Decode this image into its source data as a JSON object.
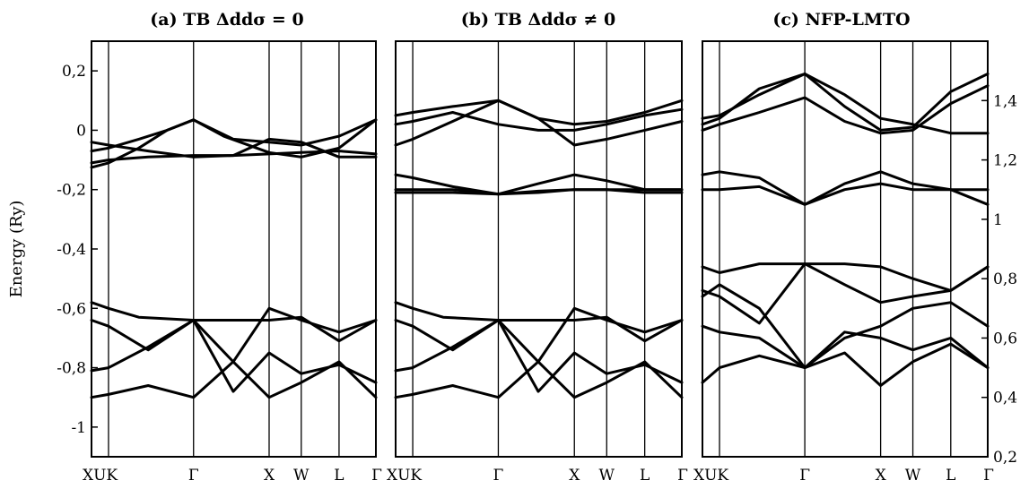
{
  "chart_data": [
    {
      "type": "line",
      "title": "(a) TB Δddσ = 0",
      "ylabel": "Energy (Ry)",
      "ylim": [
        -1.1,
        0.3
      ],
      "yticks": [
        {
          "value": 0.2,
          "label": "0,2"
        },
        {
          "value": 0.0,
          "label": "0"
        },
        {
          "value": -0.2,
          "label": "-0,2"
        },
        {
          "value": -0.4,
          "label": "-0,4"
        },
        {
          "value": -0.6,
          "label": "-0,6"
        },
        {
          "value": -0.8,
          "label": "-0,8"
        },
        {
          "value": -1.0,
          "label": "-1"
        }
      ],
      "xlim": [
        0,
        3.01
      ],
      "kpoints": [
        {
          "label": "X",
          "x": 0.0
        },
        {
          "label": "U",
          "x": 0.18
        },
        {
          "label": "K",
          "x": 0.18
        },
        {
          "label": "Γ",
          "x": 1.08
        },
        {
          "label": "X",
          "x": 1.88
        },
        {
          "label": "W",
          "x": 2.22
        },
        {
          "label": "L",
          "x": 2.62
        },
        {
          "label": "Γ",
          "x": 3.01
        }
      ],
      "xtick_labels": [
        "XUK",
        "Γ",
        "X",
        "W",
        "L",
        "Γ"
      ],
      "series": [
        {
          "x": [
            0,
            0.18,
            0.5,
            0.8,
            1.08
          ],
          "y": [
            -0.07,
            -0.06,
            -0.03,
            0.0,
            0.035
          ]
        },
        {
          "x": [
            1.08,
            1.4,
            1.88,
            2.22,
            2.62,
            3.01
          ],
          "y": [
            0.035,
            -0.02,
            -0.075,
            -0.09,
            -0.06,
            0.035
          ]
        },
        {
          "x": [
            0,
            0.18,
            0.6,
            1.08,
            1.5,
            1.88,
            2.22,
            2.62,
            3.01
          ],
          "y": [
            -0.11,
            -0.1,
            -0.09,
            -0.085,
            -0.085,
            -0.08,
            -0.075,
            -0.07,
            -0.08
          ]
        },
        {
          "x": [
            0,
            0.18,
            0.5,
            0.8,
            1.08
          ],
          "y": [
            -0.125,
            -0.11,
            -0.06,
            0.0,
            0.035
          ]
        },
        {
          "x": [
            1.08,
            1.5,
            1.88,
            2.22,
            2.62,
            3.01
          ],
          "y": [
            0.035,
            -0.03,
            -0.04,
            -0.05,
            -0.02,
            0.035
          ]
        },
        {
          "x": [
            0,
            0.18,
            0.6,
            1.08
          ],
          "y": [
            -0.04,
            -0.05,
            -0.07,
            -0.09
          ]
        },
        {
          "x": [
            1.08,
            1.5,
            1.88,
            2.22,
            2.62,
            3.01
          ],
          "y": [
            -0.09,
            -0.085,
            -0.03,
            -0.04,
            -0.09,
            -0.09
          ]
        },
        {
          "x": [
            0,
            0.18,
            0.5,
            1.08,
            1.5,
            1.88,
            2.22,
            2.62,
            3.01
          ],
          "y": [
            -0.58,
            -0.6,
            -0.63,
            -0.64,
            -0.64,
            -0.64,
            -0.63,
            -0.71,
            -0.64
          ]
        },
        {
          "x": [
            0,
            0.18,
            0.6,
            1.08,
            1.5,
            1.88,
            2.22,
            2.62,
            3.01
          ],
          "y": [
            -0.64,
            -0.66,
            -0.74,
            -0.64,
            -0.78,
            -0.6,
            -0.64,
            -0.68,
            -0.64
          ]
        },
        {
          "x": [
            0,
            0.18,
            0.6,
            1.08,
            1.5,
            1.88,
            2.22,
            2.62,
            3.01
          ],
          "y": [
            -0.81,
            -0.8,
            -0.73,
            -0.64,
            -0.88,
            -0.75,
            -0.82,
            -0.79,
            -0.85
          ]
        },
        {
          "x": [
            0,
            0.18,
            0.6,
            1.08,
            1.5,
            1.88,
            2.22,
            2.62,
            3.01
          ],
          "y": [
            -0.9,
            -0.89,
            -0.86,
            -0.9,
            -0.78,
            -0.9,
            -0.85,
            -0.78,
            -0.9
          ]
        }
      ]
    },
    {
      "type": "line",
      "title": "(b) TB Δddσ ≠ 0",
      "ylim": [
        -1.1,
        0.3
      ],
      "xlim": [
        0,
        3.01
      ],
      "kpoints": [
        {
          "label": "X",
          "x": 0.0
        },
        {
          "label": "U",
          "x": 0.18
        },
        {
          "label": "K",
          "x": 0.18
        },
        {
          "label": "Γ",
          "x": 1.08
        },
        {
          "label": "X",
          "x": 1.88
        },
        {
          "label": "W",
          "x": 2.22
        },
        {
          "label": "L",
          "x": 2.62
        },
        {
          "label": "Γ",
          "x": 3.01
        }
      ],
      "xtick_labels": [
        "XUK",
        "Γ",
        "X",
        "W",
        "L",
        "Γ"
      ],
      "series": [
        {
          "x": [
            0,
            0.18,
            0.6,
            1.08,
            1.5,
            1.88,
            2.22,
            2.62,
            3.01
          ],
          "y": [
            0.05,
            0.06,
            0.08,
            0.1,
            0.04,
            0.02,
            0.03,
            0.06,
            0.1
          ]
        },
        {
          "x": [
            0,
            0.18,
            0.6,
            1.08,
            1.5,
            1.88,
            2.22,
            2.62,
            3.01
          ],
          "y": [
            0.02,
            0.03,
            0.06,
            0.02,
            0.0,
            0.0,
            0.02,
            0.05,
            0.07
          ]
        },
        {
          "x": [
            0,
            0.18,
            0.6,
            1.08,
            1.5,
            1.88,
            2.22,
            2.62,
            3.01
          ],
          "y": [
            -0.05,
            -0.03,
            0.03,
            0.1,
            0.04,
            -0.05,
            -0.03,
            0.0,
            0.03
          ]
        },
        {
          "x": [
            0,
            0.18,
            0.6,
            1.08,
            1.5,
            1.88,
            2.22,
            2.62,
            3.01
          ],
          "y": [
            -0.15,
            -0.16,
            -0.19,
            -0.215,
            -0.18,
            -0.15,
            -0.17,
            -0.2,
            -0.2
          ]
        },
        {
          "x": [
            0,
            0.18,
            0.6,
            1.08,
            1.5,
            1.88,
            2.22,
            2.62,
            3.01
          ],
          "y": [
            -0.2,
            -0.2,
            -0.2,
            -0.215,
            -0.205,
            -0.2,
            -0.2,
            -0.2,
            -0.2
          ]
        },
        {
          "x": [
            0,
            0.18,
            0.6,
            1.08,
            1.5,
            1.88,
            2.22,
            2.62,
            3.01
          ],
          "y": [
            -0.21,
            -0.21,
            -0.21,
            -0.215,
            -0.21,
            -0.2,
            -0.2,
            -0.21,
            -0.21
          ]
        },
        {
          "x": [
            0,
            0.18,
            0.5,
            1.08,
            1.5,
            1.88,
            2.22,
            2.62,
            3.01
          ],
          "y": [
            -0.58,
            -0.6,
            -0.63,
            -0.64,
            -0.64,
            -0.64,
            -0.63,
            -0.71,
            -0.64
          ]
        },
        {
          "x": [
            0,
            0.18,
            0.6,
            1.08,
            1.5,
            1.88,
            2.22,
            2.62,
            3.01
          ],
          "y": [
            -0.64,
            -0.66,
            -0.74,
            -0.64,
            -0.78,
            -0.6,
            -0.64,
            -0.68,
            -0.64
          ]
        },
        {
          "x": [
            0,
            0.18,
            0.6,
            1.08,
            1.5,
            1.88,
            2.22,
            2.62,
            3.01
          ],
          "y": [
            -0.81,
            -0.8,
            -0.73,
            -0.64,
            -0.88,
            -0.75,
            -0.82,
            -0.79,
            -0.85
          ]
        },
        {
          "x": [
            0,
            0.18,
            0.6,
            1.08,
            1.5,
            1.88,
            2.22,
            2.62,
            3.01
          ],
          "y": [
            -0.9,
            -0.89,
            -0.86,
            -0.9,
            -0.78,
            -0.9,
            -0.85,
            -0.78,
            -0.9
          ]
        }
      ]
    },
    {
      "type": "line",
      "title": "(c) NFP-LMTO",
      "ylim": [
        0.2,
        1.6
      ],
      "yticks": [
        {
          "value": 1.4,
          "label": "1,4"
        },
        {
          "value": 1.2,
          "label": "1,2"
        },
        {
          "value": 1.0,
          "label": "1"
        },
        {
          "value": 0.8,
          "label": "0,8"
        },
        {
          "value": 0.6,
          "label": "0,6"
        },
        {
          "value": 0.4,
          "label": "0,4"
        },
        {
          "value": 0.2,
          "label": "0,2"
        }
      ],
      "xlim": [
        0,
        3.01
      ],
      "kpoints": [
        {
          "label": "X",
          "x": 0.0
        },
        {
          "label": "U",
          "x": 0.18
        },
        {
          "label": "K",
          "x": 0.18
        },
        {
          "label": "Γ",
          "x": 1.08
        },
        {
          "label": "X",
          "x": 1.88
        },
        {
          "label": "W",
          "x": 2.22
        },
        {
          "label": "L",
          "x": 2.62
        },
        {
          "label": "Γ",
          "x": 3.01
        }
      ],
      "xtick_labels": [
        "XUK",
        "Γ",
        "X",
        "W",
        "L",
        "Γ"
      ],
      "series": [
        {
          "x": [
            0,
            0.18,
            0.6,
            1.08,
            1.5,
            1.88,
            2.22,
            2.62,
            3.01
          ],
          "y": [
            1.34,
            1.35,
            1.42,
            1.49,
            1.38,
            1.3,
            1.31,
            1.43,
            1.49
          ]
        },
        {
          "x": [
            0,
            0.18,
            0.6,
            1.08,
            1.5,
            1.88,
            2.22,
            2.62,
            3.01
          ],
          "y": [
            1.3,
            1.32,
            1.36,
            1.41,
            1.33,
            1.29,
            1.3,
            1.39,
            1.45
          ]
        },
        {
          "x": [
            0,
            0.18,
            0.6,
            1.08,
            1.5,
            1.88,
            2.22,
            2.62,
            3.01
          ],
          "y": [
            1.32,
            1.34,
            1.44,
            1.49,
            1.42,
            1.34,
            1.32,
            1.29,
            1.29
          ]
        },
        {
          "x": [
            0,
            0.18,
            0.6,
            1.08,
            1.5,
            1.88,
            2.22,
            2.62,
            3.01
          ],
          "y": [
            1.15,
            1.16,
            1.14,
            1.05,
            1.12,
            1.16,
            1.12,
            1.1,
            1.05
          ]
        },
        {
          "x": [
            0,
            0.18,
            0.6,
            1.08,
            1.5,
            1.88,
            2.22,
            2.62,
            3.01
          ],
          "y": [
            1.1,
            1.1,
            1.11,
            1.05,
            1.1,
            1.12,
            1.1,
            1.1,
            1.1
          ]
        },
        {
          "x": [
            0,
            0.18,
            0.6,
            1.08,
            1.5,
            1.88,
            2.22,
            2.62,
            3.01
          ],
          "y": [
            0.84,
            0.82,
            0.85,
            0.85,
            0.85,
            0.84,
            0.8,
            0.76,
            0.84
          ]
        },
        {
          "x": [
            0,
            0.18,
            0.6,
            1.08,
            1.5,
            1.88,
            2.22,
            2.62,
            3.01
          ],
          "y": [
            0.76,
            0.74,
            0.65,
            0.85,
            0.78,
            0.72,
            0.74,
            0.76,
            0.84
          ]
        },
        {
          "x": [
            0,
            0.18,
            0.6,
            1.08,
            1.5,
            1.88,
            2.22,
            2.62,
            3.01
          ],
          "y": [
            0.74,
            0.78,
            0.7,
            0.5,
            0.6,
            0.64,
            0.7,
            0.72,
            0.64
          ]
        },
        {
          "x": [
            0,
            0.18,
            0.6,
            1.08,
            1.5,
            1.88,
            2.22,
            2.62,
            3.01
          ],
          "y": [
            0.64,
            0.62,
            0.6,
            0.5,
            0.62,
            0.6,
            0.56,
            0.6,
            0.5
          ]
        },
        {
          "x": [
            0,
            0.18,
            0.6,
            1.08,
            1.5,
            1.88,
            2.22,
            2.62,
            3.01
          ],
          "y": [
            0.45,
            0.5,
            0.54,
            0.5,
            0.55,
            0.44,
            0.52,
            0.58,
            0.5
          ]
        }
      ]
    }
  ]
}
